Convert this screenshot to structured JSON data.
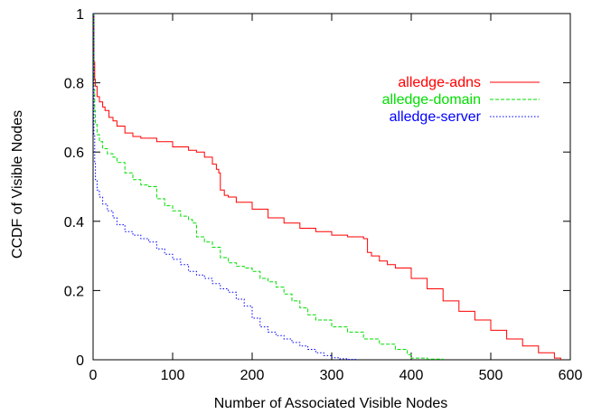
{
  "chart_data": {
    "type": "line",
    "title": "",
    "xlabel": "Number of Associated Visible Nodes",
    "ylabel": "CCDF of Visible Nodes",
    "xlim": [
      0,
      600
    ],
    "ylim": [
      0,
      1
    ],
    "xticks": [
      0,
      100,
      200,
      300,
      400,
      500,
      600
    ],
    "yticks": [
      0,
      0.2,
      0.4,
      0.6,
      0.8,
      1
    ],
    "xtick_labels": [
      "0",
      "100",
      "200",
      "300",
      "400",
      "500",
      "600"
    ],
    "ytick_labels": [
      "0",
      "0.2",
      "0.4",
      "0.6",
      "0.8",
      "1"
    ],
    "grid": false,
    "legend_position": "top-right",
    "series": [
      {
        "name": "alledge-adns",
        "color": "#ff0000",
        "style": "solid",
        "x": [
          0,
          1,
          2,
          3,
          5,
          8,
          12,
          15,
          20,
          25,
          30,
          40,
          50,
          60,
          80,
          100,
          120,
          130,
          140,
          150,
          155,
          158,
          160,
          165,
          170,
          180,
          200,
          220,
          240,
          260,
          280,
          300,
          320,
          340,
          345,
          350,
          360,
          370,
          380,
          400,
          420,
          440,
          460,
          480,
          500,
          520,
          540,
          560,
          580,
          588
        ],
        "y": [
          1.0,
          0.86,
          0.81,
          0.79,
          0.76,
          0.745,
          0.73,
          0.72,
          0.7,
          0.69,
          0.675,
          0.655,
          0.645,
          0.64,
          0.63,
          0.615,
          0.605,
          0.6,
          0.585,
          0.565,
          0.55,
          0.54,
          0.49,
          0.475,
          0.47,
          0.455,
          0.435,
          0.41,
          0.395,
          0.38,
          0.37,
          0.36,
          0.355,
          0.35,
          0.31,
          0.3,
          0.285,
          0.275,
          0.265,
          0.235,
          0.205,
          0.17,
          0.14,
          0.115,
          0.085,
          0.06,
          0.04,
          0.02,
          0.005,
          0
        ]
      },
      {
        "name": "alledge-domain",
        "color": "#00dd00",
        "style": "dashed",
        "x": [
          0,
          1,
          2,
          3,
          5,
          8,
          12,
          18,
          25,
          30,
          40,
          50,
          60,
          70,
          80,
          90,
          100,
          110,
          120,
          125,
          130,
          140,
          150,
          160,
          170,
          180,
          190,
          200,
          210,
          220,
          230,
          240,
          250,
          260,
          270,
          280,
          300,
          320,
          340,
          360,
          380,
          395,
          400,
          420,
          440
        ],
        "y": [
          1.0,
          0.78,
          0.72,
          0.68,
          0.65,
          0.63,
          0.61,
          0.595,
          0.585,
          0.57,
          0.54,
          0.52,
          0.505,
          0.5,
          0.465,
          0.445,
          0.43,
          0.415,
          0.405,
          0.395,
          0.355,
          0.34,
          0.325,
          0.295,
          0.28,
          0.27,
          0.265,
          0.255,
          0.235,
          0.225,
          0.21,
          0.19,
          0.17,
          0.15,
          0.13,
          0.115,
          0.095,
          0.08,
          0.06,
          0.045,
          0.03,
          0.015,
          0.005,
          0.002,
          0
        ]
      },
      {
        "name": "alledge-server",
        "color": "#0000ff",
        "style": "dotted",
        "x": [
          0,
          1,
          2,
          3,
          5,
          8,
          12,
          18,
          25,
          30,
          40,
          50,
          60,
          70,
          80,
          90,
          100,
          110,
          120,
          130,
          140,
          150,
          160,
          170,
          180,
          190,
          200,
          210,
          220,
          230,
          240,
          250,
          260,
          270,
          280,
          290,
          300,
          310,
          320,
          330
        ],
        "y": [
          1.0,
          0.65,
          0.57,
          0.52,
          0.49,
          0.47,
          0.45,
          0.43,
          0.41,
          0.39,
          0.37,
          0.36,
          0.35,
          0.34,
          0.32,
          0.305,
          0.29,
          0.275,
          0.255,
          0.245,
          0.235,
          0.22,
          0.205,
          0.195,
          0.175,
          0.155,
          0.12,
          0.095,
          0.08,
          0.07,
          0.06,
          0.05,
          0.04,
          0.03,
          0.02,
          0.012,
          0.006,
          0.003,
          0.001,
          0
        ]
      }
    ]
  }
}
